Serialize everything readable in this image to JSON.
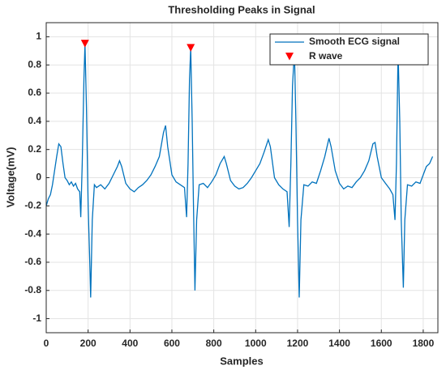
{
  "chart_data": {
    "type": "line",
    "title": "Thresholding Peaks in Signal",
    "xlabel": "Samples",
    "ylabel": "Voltage(mV)",
    "xlim": [
      0,
      1870
    ],
    "ylim": [
      -1.1,
      1.1
    ],
    "xticks": [
      0,
      200,
      400,
      600,
      800,
      1000,
      1200,
      1400,
      1600,
      1800
    ],
    "yticks": [
      -1,
      -0.8,
      -0.6,
      -0.4,
      -0.2,
      0,
      0.2,
      0.4,
      0.6,
      0.8,
      1
    ],
    "grid": true,
    "legend": "upper right",
    "series": [
      {
        "name": "Smooth ECG signal",
        "color": "#0072bd",
        "type": "line",
        "x": [
          0,
          10,
          20,
          30,
          40,
          50,
          60,
          70,
          80,
          90,
          100,
          110,
          120,
          130,
          140,
          150,
          160,
          165,
          172,
          180,
          185,
          192,
          200,
          208,
          212,
          220,
          230,
          240,
          260,
          280,
          300,
          320,
          340,
          350,
          360,
          380,
          400,
          420,
          440,
          460,
          480,
          500,
          520,
          540,
          560,
          570,
          580,
          600,
          620,
          640,
          660,
          670,
          677,
          684,
          690,
          697,
          703,
          710,
          718,
          730,
          750,
          770,
          790,
          810,
          830,
          850,
          860,
          880,
          900,
          920,
          940,
          960,
          980,
          1000,
          1020,
          1040,
          1060,
          1070,
          1090,
          1110,
          1130,
          1150,
          1160,
          1168,
          1176,
          1185,
          1192,
          1200,
          1208,
          1216,
          1230,
          1250,
          1270,
          1290,
          1310,
          1330,
          1350,
          1360,
          1380,
          1400,
          1420,
          1440,
          1460,
          1480,
          1500,
          1520,
          1540,
          1560,
          1570,
          1580,
          1600,
          1620,
          1640,
          1655,
          1665,
          1672,
          1680,
          1688,
          1695,
          1705,
          1712,
          1725,
          1745,
          1765,
          1785,
          1800,
          1815,
          1830,
          1845
        ],
        "values": [
          -0.2,
          -0.15,
          -0.12,
          -0.05,
          0.05,
          0.15,
          0.24,
          0.22,
          0.1,
          0.0,
          -0.02,
          -0.05,
          -0.03,
          -0.06,
          -0.04,
          -0.08,
          -0.1,
          -0.28,
          0.1,
          0.7,
          0.95,
          0.5,
          -0.2,
          -0.6,
          -0.85,
          -0.3,
          -0.05,
          -0.07,
          -0.05,
          -0.08,
          -0.04,
          0.02,
          0.08,
          0.12,
          0.08,
          -0.04,
          -0.08,
          -0.1,
          -0.07,
          -0.05,
          -0.02,
          0.02,
          0.08,
          0.15,
          0.32,
          0.37,
          0.22,
          0.02,
          -0.03,
          -0.05,
          -0.07,
          -0.28,
          0.1,
          0.7,
          0.92,
          0.4,
          -0.2,
          -0.8,
          -0.3,
          -0.05,
          -0.04,
          -0.07,
          -0.03,
          0.02,
          0.1,
          0.15,
          0.1,
          -0.02,
          -0.06,
          -0.08,
          -0.07,
          -0.04,
          0.0,
          0.05,
          0.1,
          0.18,
          0.27,
          0.22,
          0.0,
          -0.05,
          -0.08,
          -0.1,
          -0.35,
          0.1,
          0.65,
          0.9,
          0.4,
          -0.3,
          -0.85,
          -0.3,
          -0.05,
          -0.06,
          -0.03,
          -0.04,
          0.05,
          0.15,
          0.28,
          0.22,
          0.05,
          -0.04,
          -0.08,
          -0.06,
          -0.07,
          -0.03,
          0.0,
          0.05,
          0.12,
          0.24,
          0.25,
          0.15,
          0.0,
          -0.04,
          -0.08,
          -0.12,
          -0.3,
          0.1,
          0.9,
          0.4,
          -0.3,
          -0.78,
          -0.3,
          -0.05,
          -0.06,
          -0.03,
          -0.04,
          0.02,
          0.08,
          0.1,
          0.15
        ]
      },
      {
        "name": "R wave",
        "color": "#ff0000",
        "type": "scatter",
        "marker": "triangle-down",
        "x": [
          185,
          690
        ],
        "values": [
          0.95,
          0.92
        ]
      }
    ]
  }
}
